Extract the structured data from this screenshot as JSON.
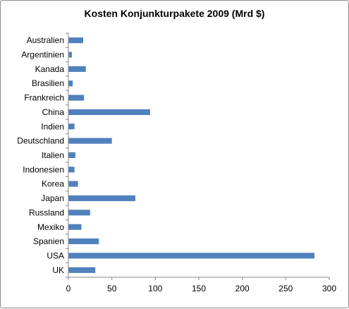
{
  "chart_data": {
    "type": "bar",
    "orientation": "horizontal",
    "title": "Kosten Konjunkturpakete 2009 (Mrd $)",
    "xlabel": "",
    "ylabel": "",
    "categories": [
      "Australien",
      "Argentinien",
      "Kanada",
      "Brasilien",
      "Frankreich",
      "China",
      "Indien",
      "Deutschland",
      "Italien",
      "Indonesien",
      "Korea",
      "Japan",
      "Russland",
      "Mexiko",
      "Spanien",
      "USA",
      "UK"
    ],
    "values": [
      17,
      4,
      20,
      5,
      18,
      94,
      7,
      50,
      8,
      7,
      11,
      77,
      25,
      15,
      35,
      283,
      31
    ],
    "xlim": [
      0,
      300
    ],
    "x_ticks": [
      0,
      50,
      100,
      150,
      200,
      250,
      300
    ],
    "bar_color": "#4f81bd",
    "grid": false,
    "legend": "none"
  }
}
